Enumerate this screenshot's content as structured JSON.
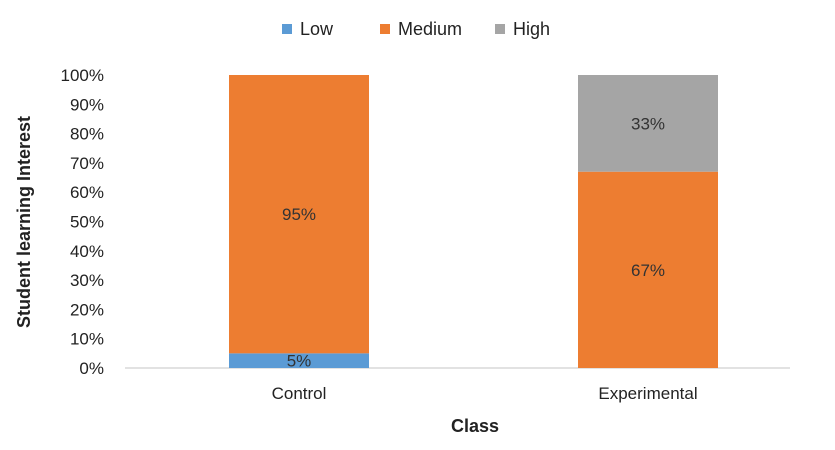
{
  "chart_data": {
    "type": "bar",
    "stacked": true,
    "categories": [
      "Control",
      "Experimental"
    ],
    "series": [
      {
        "name": "Low",
        "color": "#5b9bd5",
        "values": [
          5,
          0
        ],
        "labels": [
          "5%",
          ""
        ]
      },
      {
        "name": "Medium",
        "color": "#ed7d31",
        "values": [
          95,
          67
        ],
        "labels": [
          "95%",
          "67%"
        ]
      },
      {
        "name": "High",
        "color": "#a5a5a5",
        "values": [
          0,
          33
        ],
        "labels": [
          "",
          "33%"
        ]
      }
    ],
    "title": "",
    "xlabel": "Class",
    "ylabel": "Student learning Interest",
    "ylim": [
      0,
      100
    ],
    "yticks": [
      "0%",
      "10%",
      "20%",
      "30%",
      "40%",
      "50%",
      "60%",
      "70%",
      "80%",
      "90%",
      "100%"
    ],
    "legend": "top-center",
    "grid": false
  }
}
